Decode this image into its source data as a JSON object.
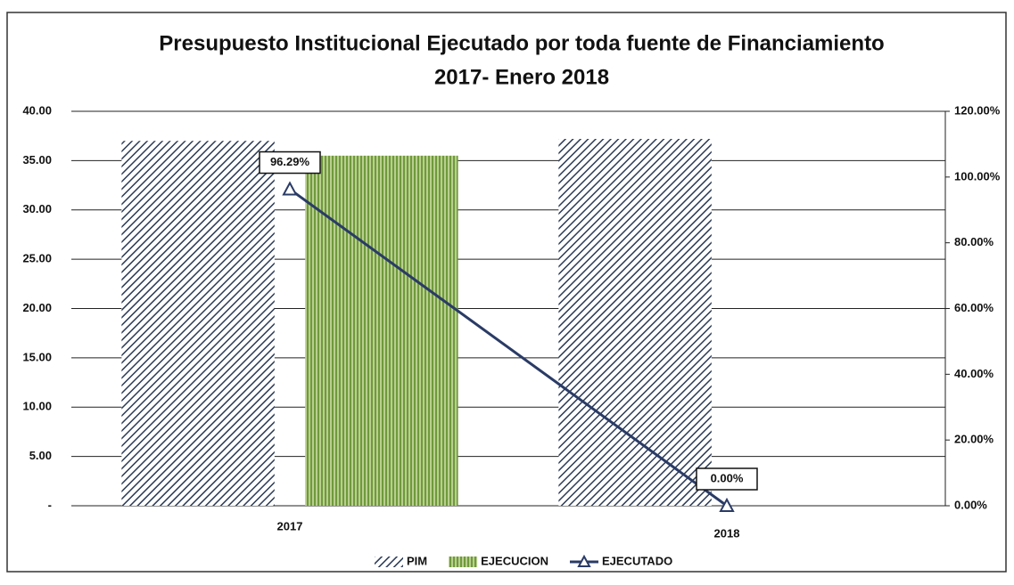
{
  "chart_data": {
    "type": "bar-line",
    "title": "Presupuesto Institucional Ejecutado por toda fuente de Financiamiento",
    "subtitle": "2017- Enero 2018",
    "categories": [
      "2017",
      "2018"
    ],
    "series": [
      {
        "name": "PIM",
        "type": "bar",
        "pattern": "diagonal",
        "color": "#2b3a55",
        "values": [
          37.0,
          37.2
        ]
      },
      {
        "name": "EJECUCION",
        "type": "bar",
        "pattern": "vertical",
        "color": "#6f9a3c",
        "values": [
          35.5,
          0
        ]
      },
      {
        "name": "EJECUTADO",
        "type": "line",
        "axis": "y2",
        "color": "#2a3b66",
        "values": [
          96.29,
          0.0
        ],
        "value_labels": [
          "96.29%",
          "0.00%"
        ]
      }
    ],
    "ylim": [
      0,
      40
    ],
    "yticks": [
      {
        "value": 0,
        "label": "-"
      },
      {
        "value": 5,
        "label": "5.00"
      },
      {
        "value": 10,
        "label": "10.00"
      },
      {
        "value": 15,
        "label": "15.00"
      },
      {
        "value": 20,
        "label": "20.00"
      },
      {
        "value": 25,
        "label": "25.00"
      },
      {
        "value": 30,
        "label": "30.00"
      },
      {
        "value": 35,
        "label": "35.00"
      },
      {
        "value": 40,
        "label": "40.00"
      }
    ],
    "y2lim": [
      0,
      120
    ],
    "y2ticks": [
      {
        "value": 0,
        "label": "0.00%"
      },
      {
        "value": 20,
        "label": "20.00%"
      },
      {
        "value": 40,
        "label": "40.00%"
      },
      {
        "value": 60,
        "label": "60.00%"
      },
      {
        "value": 80,
        "label": "80.00%"
      },
      {
        "value": 100,
        "label": "100.00%"
      },
      {
        "value": 120,
        "label": "120.00%"
      }
    ],
    "grid": true,
    "legend": "bottom"
  }
}
